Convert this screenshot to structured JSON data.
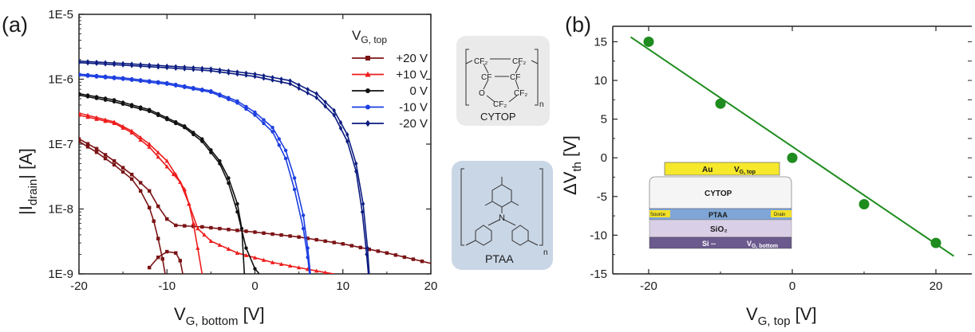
{
  "panel_a": {
    "label": "(a)",
    "xlabel_main": "V",
    "xlabel_sub": "G, bottom",
    "xlabel_unit": " [V]",
    "ylabel_main": "|I",
    "ylabel_sub": "drain",
    "ylabel_unit": "| [A]",
    "legend_title_main": "V",
    "legend_title_sub": "G, top"
  },
  "panel_b": {
    "label": "(b)",
    "xlabel_main": "V",
    "xlabel_sub": "G, top",
    "xlabel_unit": " [V]",
    "ylabel_main": "ΔV",
    "ylabel_sub": "th",
    "ylabel_unit": " [V]"
  },
  "molecules": {
    "cytop": {
      "name": "CYTOP",
      "cf2_a": "CF₂",
      "cf2_b": "CF₂",
      "cf_a": "CF",
      "cf_b": "CF",
      "o": "O",
      "cf2_c": "CF₂",
      "cf2_d": "CF₂",
      "n": "n"
    },
    "ptaa": {
      "name": "PTAA",
      "n_atom": "N",
      "n": "n"
    }
  },
  "device": {
    "gate_top": "Au",
    "gate_top_label": "V",
    "gate_top_sub": "G, top",
    "dielectric_top": "CYTOP",
    "semiconductor": "PTAA",
    "source": "Source",
    "drain": "Drain",
    "oxide": "SiO₂",
    "substrate": "Si --",
    "gate_bottom_label": "V",
    "gate_bottom_sub": "G, bottom"
  },
  "colors": {
    "s20": "#7b1315",
    "s10": "#ee1c1c",
    "s0": "#111111",
    "sm10": "#1c3ee0",
    "sm20": "#0c1c80",
    "fit": "#1e8c1e",
    "cytop_bg": "#eaeaea",
    "ptaa_bg": "#c9d6e6"
  },
  "chart_data": [
    {
      "type": "line",
      "xlim": [
        -20,
        20
      ],
      "ylim": [
        1e-09,
        1e-05
      ],
      "yscale": "log",
      "xticks": [
        "-20",
        "-10",
        "0",
        "10",
        "20"
      ],
      "yticks": [
        "1E-9",
        "1E-8",
        "1E-7",
        "1E-6",
        "1E-5"
      ],
      "legend_position": "top-right",
      "series": [
        {
          "name": "+20 V",
          "color_key": "s20",
          "marker": "square",
          "forward": [
            [
              -20,
              1.1e-07
            ],
            [
              -18,
              7.5e-08
            ],
            [
              -16,
              4.8e-08
            ],
            [
              -14,
              2.9e-08
            ],
            [
              -13,
              1.9e-08
            ],
            [
              -12,
              1.05e-08
            ],
            [
              -11.5,
              6.5e-09
            ],
            [
              -11,
              3.5e-09
            ],
            [
              -10.5,
              1.7e-09
            ],
            [
              -10.2,
              1e-09
            ]
          ],
          "reverse": [
            [
              -20,
              1.2e-07
            ],
            [
              -18,
              8.5e-08
            ],
            [
              -16,
              5.5e-08
            ],
            [
              -14,
              3.4e-08
            ],
            [
              -12,
              1.9e-08
            ],
            [
              -11,
              1.1e-08
            ],
            [
              -10,
              7e-09
            ],
            [
              -9,
              5.6e-09
            ],
            [
              -6,
              5.3e-09
            ],
            [
              0,
              4.4e-09
            ],
            [
              5,
              3.7e-09
            ],
            [
              10,
              2.9e-09
            ],
            [
              15,
              2.1e-09
            ],
            [
              20,
              1.45e-09
            ]
          ],
          "hump": [
            [
              -12,
              1.25e-09
            ],
            [
              -11,
              1.8e-09
            ],
            [
              -10,
              2.2e-09
            ],
            [
              -9,
              2.1e-09
            ],
            [
              -8.5,
              1.6e-09
            ],
            [
              -8.2,
              1e-09
            ]
          ]
        },
        {
          "name": "+10 V",
          "color_key": "s10",
          "marker": "triangle",
          "forward": [
            [
              -20,
              3e-07
            ],
            [
              -16,
              2.2e-07
            ],
            [
              -14,
              1.6e-07
            ],
            [
              -12,
              1e-07
            ],
            [
              -10,
              5.5e-08
            ],
            [
              -9,
              3.4e-08
            ],
            [
              -8,
              2e-08
            ],
            [
              -7.5,
              1.2e-08
            ],
            [
              -7,
              6e-09
            ],
            [
              -6.5,
              2.5e-09
            ],
            [
              -6,
              1e-09
            ]
          ],
          "reverse": [
            [
              -20,
              2.8e-07
            ],
            [
              -16,
              2.1e-07
            ],
            [
              -14,
              1.5e-07
            ],
            [
              -12,
              9e-08
            ],
            [
              -10,
              4.5e-08
            ],
            [
              -8.5,
              2.6e-08
            ],
            [
              -7.5,
              1.2e-08
            ],
            [
              -6.5,
              5e-09
            ],
            [
              -5,
              3.2e-09
            ],
            [
              -2,
              2.1e-09
            ],
            [
              2,
              1.5e-09
            ],
            [
              5,
              1.25e-09
            ],
            [
              8,
              1.05e-09
            ],
            [
              9,
              1e-09
            ]
          ]
        },
        {
          "name": "0 V",
          "color_key": "s0",
          "marker": "circle",
          "forward": [
            [
              -20,
              6e-07
            ],
            [
              -16,
              4.8e-07
            ],
            [
              -12,
              3.4e-07
            ],
            [
              -8,
              1.9e-07
            ],
            [
              -6,
              1.2e-07
            ],
            [
              -4,
              5.5e-08
            ],
            [
              -3,
              3e-08
            ],
            [
              -2,
              1.2e-08
            ],
            [
              -1.5,
              5e-09
            ],
            [
              -1.2,
              1e-09
            ]
          ],
          "reverse": [
            [
              -20,
              5.7e-07
            ],
            [
              -16,
              4.5e-07
            ],
            [
              -12,
              3.2e-07
            ],
            [
              -8,
              1.8e-07
            ],
            [
              -6,
              1.1e-07
            ],
            [
              -4,
              5e-08
            ],
            [
              -3,
              2.5e-08
            ],
            [
              -2,
              9e-09
            ],
            [
              -1,
              2.5e-09
            ],
            [
              0,
              1.2e-09
            ],
            [
              0.5,
              1e-09
            ]
          ]
        },
        {
          "name": "-10 V",
          "color_key": "sm10",
          "marker": "circle",
          "forward": [
            [
              -20,
              1.2e-06
            ],
            [
              -15,
              1.05e-06
            ],
            [
              -10,
              8.8e-07
            ],
            [
              -5,
              6.6e-07
            ],
            [
              -2,
              4.6e-07
            ],
            [
              0,
              3.1e-07
            ],
            [
              2,
              1.8e-07
            ],
            [
              3.5,
              8e-08
            ],
            [
              4.5,
              3e-08
            ],
            [
              5.5,
              8e-09
            ],
            [
              6,
              2.5e-09
            ],
            [
              6.3,
              1e-09
            ]
          ],
          "reverse": [
            [
              -20,
              1.15e-06
            ],
            [
              -15,
              1e-06
            ],
            [
              -10,
              8.4e-07
            ],
            [
              -5,
              6.3e-07
            ],
            [
              -2,
              4.3e-07
            ],
            [
              0,
              2.8e-07
            ],
            [
              2,
              1.55e-07
            ],
            [
              3.5,
              6e-08
            ],
            [
              4.5,
              2e-08
            ],
            [
              5.5,
              5e-09
            ],
            [
              6,
              1.8e-09
            ],
            [
              6.2,
              1e-09
            ]
          ]
        },
        {
          "name": "-20 V",
          "color_key": "sm20",
          "marker": "diamond",
          "forward": [
            [
              -20,
              1.9e-06
            ],
            [
              -15,
              1.75e-06
            ],
            [
              -10,
              1.6e-06
            ],
            [
              -5,
              1.45e-06
            ],
            [
              0,
              1.2e-06
            ],
            [
              4,
              9.5e-07
            ],
            [
              7,
              6e-07
            ],
            [
              9,
              3.3e-07
            ],
            [
              10.5,
              1.4e-07
            ],
            [
              11.5,
              5e-08
            ],
            [
              12.3,
              1.2e-08
            ],
            [
              12.8,
              2.5e-09
            ],
            [
              13,
              1e-09
            ]
          ],
          "reverse": [
            [
              -20,
              1.8e-06
            ],
            [
              -15,
              1.65e-06
            ],
            [
              -10,
              1.5e-06
            ],
            [
              -5,
              1.35e-06
            ],
            [
              0,
              1.1e-06
            ],
            [
              4,
              8.5e-07
            ],
            [
              7,
              5.2e-07
            ],
            [
              9,
              2.8e-07
            ],
            [
              10.5,
              1.1e-07
            ],
            [
              11.5,
              3.8e-08
            ],
            [
              12.2,
              9e-09
            ],
            [
              12.7,
              2e-09
            ],
            [
              12.9,
              1e-09
            ]
          ]
        }
      ]
    },
    {
      "type": "scatter",
      "xlim": [
        -25,
        25
      ],
      "ylim": [
        -15,
        17
      ],
      "xticks": [
        "-20",
        "0",
        "20"
      ],
      "yticks": [
        "-15",
        "-10",
        "-5",
        "0",
        "5",
        "10",
        "15"
      ],
      "points": {
        "x": [
          -20,
          -10,
          0,
          10,
          20
        ],
        "y": [
          15,
          7,
          0,
          -6,
          -11
        ]
      },
      "fit": {
        "x": [
          -22.5,
          22.5
        ],
        "y": [
          15.6,
          -12.7
        ]
      }
    }
  ]
}
